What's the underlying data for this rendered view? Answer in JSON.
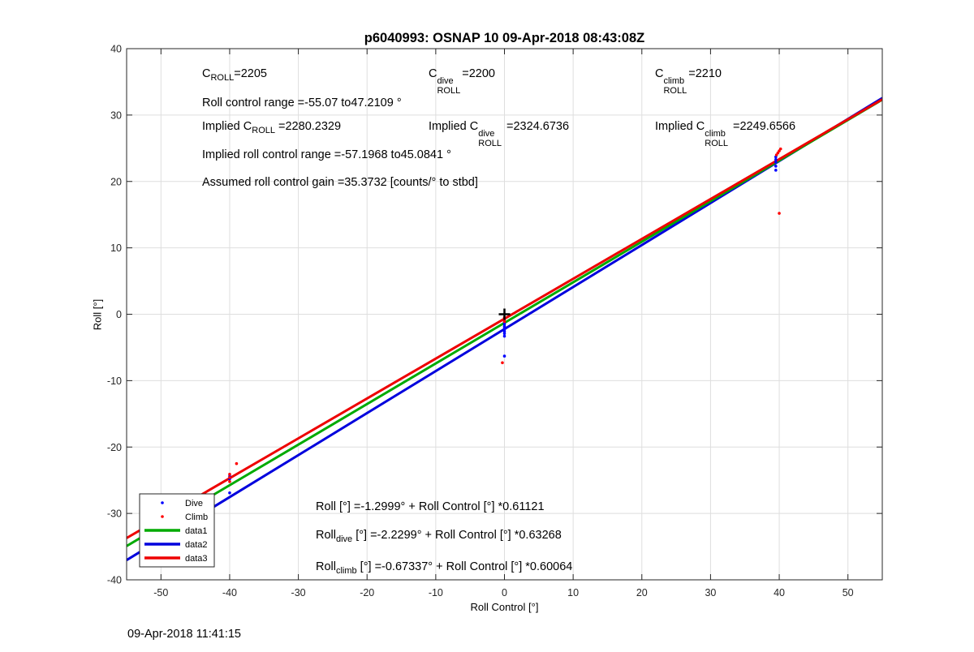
{
  "title": "p6040993: OSNAP 10 09-Apr-2018 08:43:08Z",
  "footer_timestamp": "09-Apr-2018 11:41:15",
  "annotations": {
    "c_roll": {
      "base": "C",
      "sub": "ROLL",
      "value": "=2205"
    },
    "c_roll_dive": {
      "base": "C",
      "sup": "dive",
      "sub": "ROLL",
      "value": "=2200"
    },
    "c_roll_climb": {
      "base": "C",
      "sup": "climb",
      "sub": "ROLL",
      "value": "=2210"
    },
    "roll_control_range": "Roll control range =-55.07 to47.2109 °",
    "implied_c_roll": {
      "prefix": "Implied C",
      "sub": "ROLL",
      "value": " =2280.2329"
    },
    "implied_c_roll_dive": {
      "prefix": "Implied C",
      "sup": "dive",
      "sub": "ROLL",
      "value": " =2324.6736"
    },
    "implied_c_roll_climb": {
      "prefix": "Implied C",
      "sup": "climb",
      "sub": "ROLL",
      "value": " =2249.6566"
    },
    "implied_range": "Implied roll control range =-57.1968 to45.0841 °",
    "assumed_gain": "Assumed roll control gain =35.3732 [counts/° to stbd]",
    "fit_all": {
      "prefix": "Roll",
      "sub": "",
      "text": " [°] =-1.2999° + Roll Control [°] *0.61121"
    },
    "fit_dive": {
      "prefix": "Roll",
      "sub": "dive",
      "text": " [°] =-2.2299° + Roll Control [°] *0.63268"
    },
    "fit_climb": {
      "prefix": "Roll",
      "sub": "climb",
      "text": " [°] =-0.67337° + Roll Control [°] *0.60064"
    }
  },
  "chart_data": {
    "type": "scatter",
    "title": "p6040993: OSNAP 10 09-Apr-2018 08:43:08Z",
    "xlabel": "Roll Control [°]",
    "ylabel": "Roll [°]",
    "xlim": [
      -55,
      55
    ],
    "ylim": [
      -40,
      40
    ],
    "xticks": [
      -50,
      -40,
      -30,
      -20,
      -10,
      0,
      10,
      20,
      30,
      40,
      50
    ],
    "yticks": [
      -40,
      -30,
      -20,
      -10,
      0,
      10,
      20,
      30,
      40
    ],
    "grid": true,
    "legend_position": "bottom-left",
    "series": [
      {
        "name": "Dive",
        "kind": "points",
        "color": "#0000ff",
        "points": [
          [
            -40,
            -26.9
          ],
          [
            -40,
            -24.8
          ],
          [
            -40,
            -24.4
          ],
          [
            0,
            -6.3
          ],
          [
            0,
            -3.3
          ],
          [
            0,
            -2.9
          ],
          [
            0,
            -2.6
          ],
          [
            0,
            -2.3
          ],
          [
            0,
            -2.0
          ],
          [
            0,
            -1.8
          ],
          [
            0,
            -1.5
          ],
          [
            0,
            -1.2
          ],
          [
            39.5,
            21.7
          ],
          [
            39.5,
            22.3
          ],
          [
            39.5,
            22.9
          ],
          [
            39.5,
            23.3
          ],
          [
            39.5,
            23.7
          ]
        ]
      },
      {
        "name": "Climb",
        "kind": "points",
        "color": "#ff0000",
        "points": [
          [
            -39,
            -22.5
          ],
          [
            -40,
            -24.1
          ],
          [
            -40,
            -24.6
          ],
          [
            -40,
            -25.2
          ],
          [
            -0.3,
            -7.3
          ],
          [
            0,
            -0.8
          ],
          [
            0,
            -1.1
          ],
          [
            0,
            -0.5
          ],
          [
            40,
            15.2
          ],
          [
            39.8,
            24.3
          ],
          [
            40,
            24.6
          ],
          [
            40.2,
            24.9
          ],
          [
            39.6,
            24.0
          ]
        ]
      },
      {
        "name": "data1",
        "kind": "line",
        "color": "#00aa00",
        "intercept": -1.2999,
        "slope": 0.61121
      },
      {
        "name": "data2",
        "kind": "line",
        "color": "#0000dd",
        "intercept": -2.2299,
        "slope": 0.63268
      },
      {
        "name": "data3",
        "kind": "line",
        "color": "#ee0000",
        "intercept": -0.67337,
        "slope": 0.60064
      }
    ],
    "markers": [
      {
        "kind": "plus",
        "x": 0,
        "y": 0,
        "color": "#000000"
      }
    ]
  }
}
